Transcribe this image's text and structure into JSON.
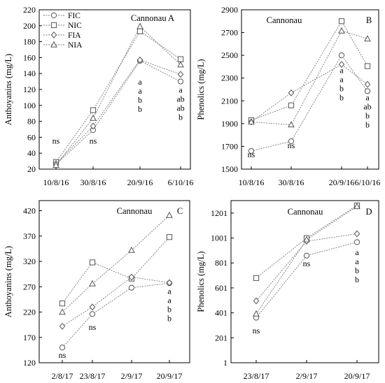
{
  "chart_data": [
    {
      "panel": "A",
      "type": "line",
      "title": "Cannonau A",
      "ylabel": "Anthoyanins (mg/L)",
      "xlabel": "",
      "categories": [
        "10/8/16",
        "30/8/16",
        "20/9/16",
        "6/10/16"
      ],
      "ylim": [
        20,
        220
      ],
      "yticks": [
        20,
        40,
        60,
        80,
        100,
        120,
        140,
        160,
        180,
        200,
        220
      ],
      "grid": false,
      "legend_position": "top-left",
      "series": [
        {
          "name": "FIC",
          "marker": "circle",
          "values": [
            26,
            69,
            156,
            130
          ]
        },
        {
          "name": "NIC",
          "marker": "square",
          "values": [
            29,
            94,
            193,
            158
          ]
        },
        {
          "name": "FIA",
          "marker": "diamond",
          "values": [
            27,
            74,
            157,
            139
          ]
        },
        {
          "name": "NIA",
          "marker": "triangle",
          "values": [
            25,
            84,
            199,
            151
          ]
        }
      ],
      "annotations": [
        {
          "category": "10/8/16",
          "lines": [
            "ns"
          ],
          "y": 52
        },
        {
          "category": "30/8/16",
          "lines": [
            "ns"
          ],
          "y": 52
        },
        {
          "category": "20/9/16",
          "lines": [
            "a",
            "a",
            "b",
            "b"
          ],
          "y": 126
        },
        {
          "category": "6/10/16",
          "lines": [
            "a",
            "ab",
            "ab",
            "b"
          ],
          "y": 116
        }
      ]
    },
    {
      "panel": "B",
      "type": "line",
      "title": "Cannonau",
      "panel_label": "B",
      "ylabel": "Phenolics (mg/L)",
      "xlabel": "",
      "categories": [
        "10/8/16",
        "30/8/16",
        "20/9/16",
        "6/10/16"
      ],
      "ylim": [
        1500,
        2900
      ],
      "yticks": [
        1500,
        1700,
        1900,
        2100,
        2300,
        2500,
        2700,
        2900
      ],
      "grid": false,
      "series": [
        {
          "name": "FIC",
          "marker": "circle",
          "values": [
            1660,
            1745,
            2500,
            2185
          ]
        },
        {
          "name": "NIC",
          "marker": "square",
          "values": [
            1930,
            2060,
            2800,
            2405
          ]
        },
        {
          "name": "FIA",
          "marker": "diamond",
          "values": [
            1915,
            2170,
            2420,
            2245
          ]
        },
        {
          "name": "NIA",
          "marker": "triangle",
          "values": [
            1915,
            1890,
            2715,
            2645
          ]
        }
      ],
      "annotations": [
        {
          "category": "10/8/16",
          "lines": [
            "ns"
          ],
          "y": 1605
        },
        {
          "category": "30/8/16",
          "lines": [
            "ns"
          ],
          "y": 1685
        },
        {
          "category": "20/9/16",
          "lines": [
            "a",
            "a",
            "b",
            "b"
          ],
          "y": 2345
        },
        {
          "category": "6/10/16",
          "lines": [
            "a",
            "ab",
            "b",
            "b"
          ],
          "y": 2105
        }
      ]
    },
    {
      "panel": "C",
      "type": "line",
      "title": "Cannonau",
      "panel_label": "C",
      "ylabel": "Anthoyanins (mg/L)",
      "xlabel": "",
      "categories": [
        "2/8/17",
        "23/8/17",
        "2/9/17",
        "20/9/17"
      ],
      "ylim": [
        120,
        440
      ],
      "yticks": [
        120,
        170,
        220,
        270,
        320,
        370,
        420
      ],
      "grid": false,
      "series": [
        {
          "name": "FIC",
          "marker": "circle",
          "values": [
            150,
            216,
            268,
            277
          ]
        },
        {
          "name": "NIC",
          "marker": "square",
          "values": [
            237,
            318,
            286,
            368
          ]
        },
        {
          "name": "FIA",
          "marker": "diamond",
          "values": [
            192,
            230,
            289,
            278
          ]
        },
        {
          "name": "NIA",
          "marker": "triangle",
          "values": [
            220,
            276,
            342,
            411
          ]
        }
      ],
      "annotations": [
        {
          "category": "2/8/17",
          "lines": [
            "ns"
          ],
          "y": 130
        },
        {
          "category": "23/8/17",
          "lines": [
            "ns"
          ],
          "y": 185
        },
        {
          "category": "20/9/17",
          "lines": [
            "a",
            "a",
            "b",
            "b"
          ],
          "y": 256
        }
      ]
    },
    {
      "panel": "D",
      "type": "line",
      "title": "Cannonau",
      "panel_label": "D",
      "ylabel": "Phenolics  (mg/L)",
      "xlabel": "",
      "categories": [
        "23/8/17",
        "2/9/17",
        "20/9/17"
      ],
      "ylim": [
        1,
        1301
      ],
      "yticks": [
        1,
        201,
        401,
        601,
        801,
        1001,
        1201
      ],
      "grid": false,
      "series": [
        {
          "name": "FIC",
          "marker": "circle",
          "values": [
            362,
            860,
            968
          ]
        },
        {
          "name": "NIC",
          "marker": "square",
          "values": [
            680,
            1000,
            1262
          ]
        },
        {
          "name": "FIA",
          "marker": "diamond",
          "values": [
            497,
            975,
            1035
          ]
        },
        {
          "name": "NIA",
          "marker": "triangle",
          "values": [
            393,
            988,
            1254
          ]
        }
      ],
      "annotations": [
        {
          "category": "23/8/17",
          "lines": [
            "ns"
          ],
          "y": 235
        },
        {
          "category": "2/9/17",
          "lines": [
            "ns"
          ],
          "y": 775
        },
        {
          "category": "20/9/17",
          "lines": [
            "a",
            "a",
            "b",
            "b"
          ],
          "y": 865
        }
      ]
    }
  ]
}
